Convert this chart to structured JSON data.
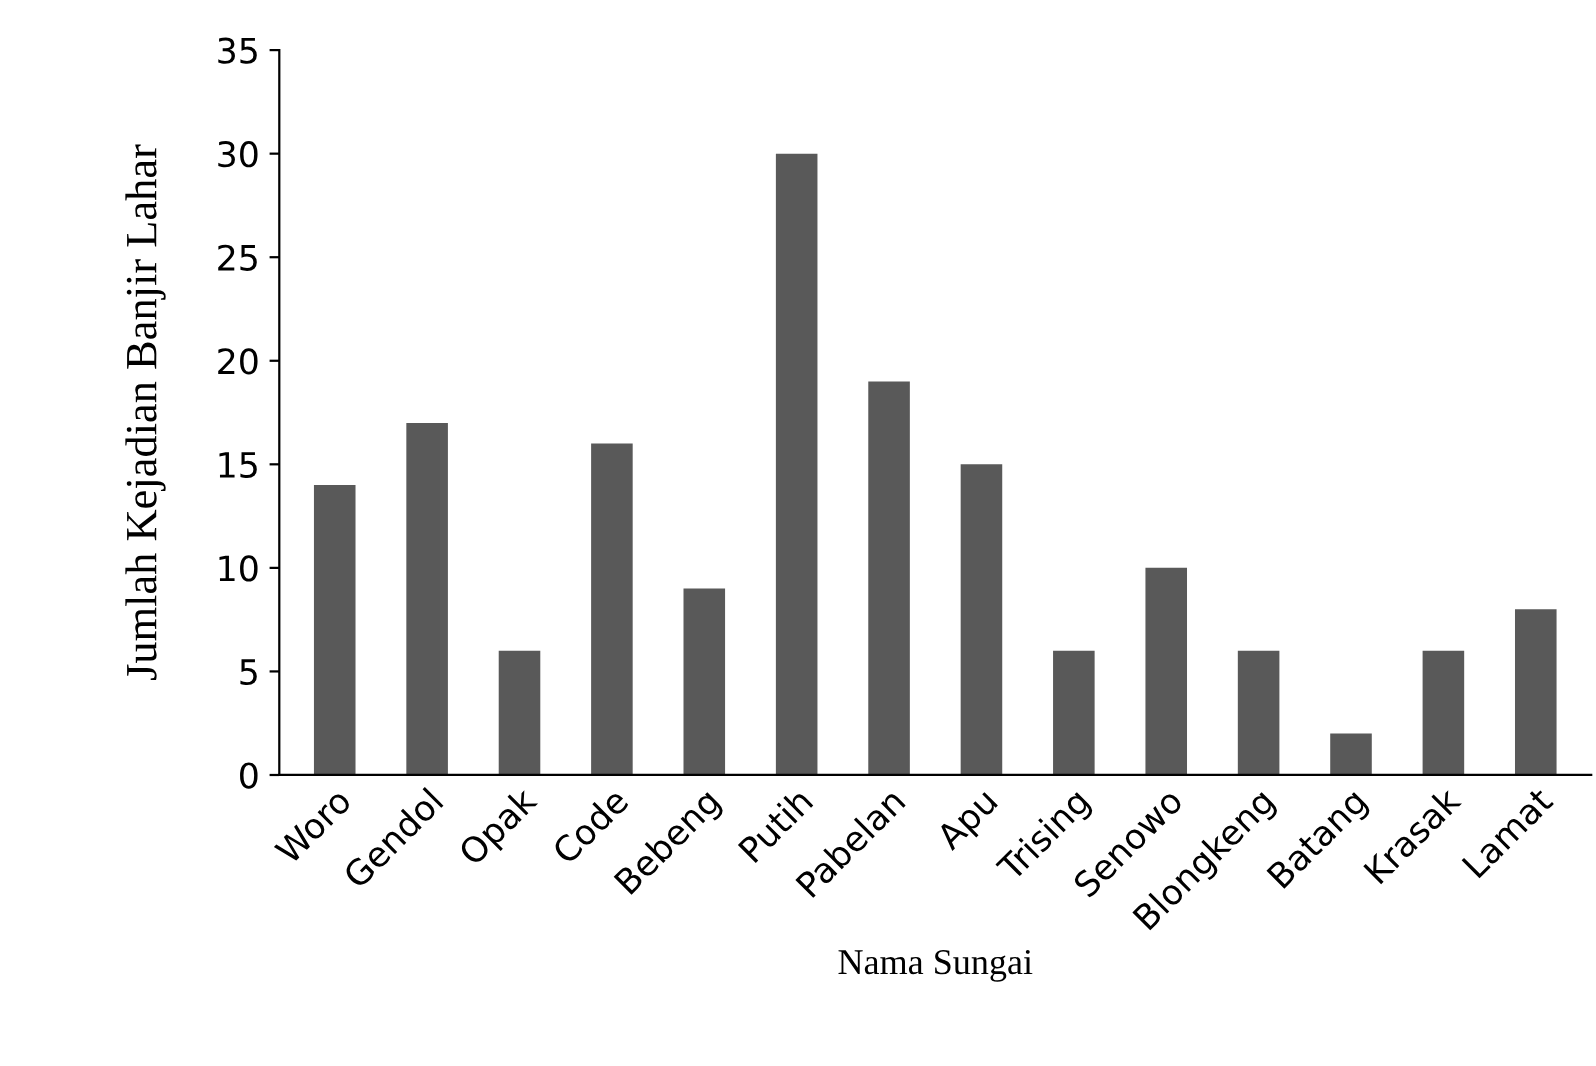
{
  "chart_data": {
    "type": "bar",
    "xlabel": "Nama Sungai",
    "ylabel": "Jumlah Kejadian Banjir Lahar",
    "categories": [
      "Woro",
      "Gendol",
      "Opak",
      "Code",
      "Bebeng",
      "Putih",
      "Pabelan",
      "Apu",
      "Trising",
      "Senowo",
      "Blongkeng",
      "Batang",
      "Krasak",
      "Lamat"
    ],
    "values": [
      14,
      17,
      6,
      16,
      9,
      30,
      19,
      15,
      6,
      10,
      6,
      2,
      6,
      8
    ],
    "color": "#595959",
    "ylim": [
      0,
      35
    ],
    "yticks": [
      0,
      5,
      10,
      15,
      20,
      25,
      30,
      35
    ],
    "grid": false
  }
}
